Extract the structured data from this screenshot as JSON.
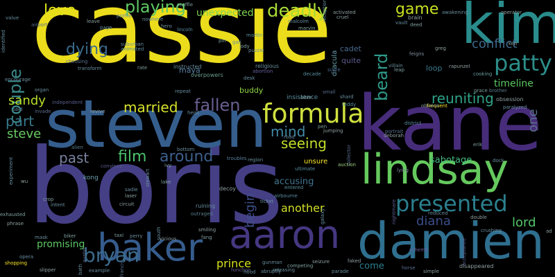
{
  "background": "#000000",
  "palette": [
    "#fde725",
    "#5ec962",
    "#21918c",
    "#3b528b",
    "#440154"
  ],
  "words": [
    {
      "text": "cassie",
      "color": "#ecdd1c",
      "size": 140,
      "weight": 5
    },
    {
      "text": "boris",
      "color": "#453f85",
      "size": 150,
      "weight": 5
    },
    {
      "text": "kane",
      "color": "#472c7a",
      "size": 110,
      "weight": 5
    },
    {
      "text": "steven",
      "color": "#355e8d",
      "size": 95,
      "weight": 5
    },
    {
      "text": "kim",
      "color": "#2a8c8c",
      "size": 80,
      "weight": 5
    },
    {
      "text": "damien",
      "color": "#2f6f8f",
      "size": 72,
      "weight": 5
    },
    {
      "text": "aaron",
      "color": "#453781",
      "size": 56,
      "weight": 4
    },
    {
      "text": "baker",
      "color": "#365c8d",
      "size": 54,
      "weight": 4
    },
    {
      "text": "lindsay",
      "color": "#65c95e",
      "size": 60,
      "weight": 4
    },
    {
      "text": "formula",
      "color": "#cfe13e",
      "size": 38,
      "weight": 3
    },
    {
      "text": "presented",
      "color": "#2b7f8e",
      "size": 32,
      "weight": 3
    },
    {
      "text": "patty",
      "color": "#2c8e8a",
      "size": 32,
      "weight": 3
    },
    {
      "text": "bryan",
      "color": "#3b6b8c",
      "size": 28,
      "weight": 3
    },
    {
      "text": "deadly",
      "color": "#a8db34",
      "size": 26,
      "weight": 3
    },
    {
      "text": "playing",
      "color": "#5fc862",
      "size": 24,
      "weight": 3
    },
    {
      "text": "fallen",
      "color": "#6a5f91",
      "size": 24,
      "weight": 3
    },
    {
      "text": "couple",
      "color": "#3b8b8d",
      "size": 24,
      "weight": 3
    },
    {
      "text": "beard",
      "color": "#2f9a8a",
      "size": 24,
      "weight": 3
    },
    {
      "text": "around",
      "color": "#3e5f8d",
      "size": 22,
      "weight": 3
    },
    {
      "text": "film",
      "color": "#4bc16b",
      "size": 22,
      "weight": 3
    },
    {
      "text": "love",
      "color": "#dfe318",
      "size": 22,
      "weight": 3
    },
    {
      "text": "game",
      "color": "#c8e020",
      "size": 22,
      "weight": 3
    },
    {
      "text": "dying",
      "color": "#3a6a8c",
      "size": 22,
      "weight": 3
    },
    {
      "text": "married",
      "color": "#d6e22a",
      "size": 20,
      "weight": 2
    },
    {
      "text": "reuniting",
      "color": "#2fa287",
      "size": 20,
      "weight": 2
    },
    {
      "text": "mind",
      "color": "#4289a6",
      "size": 20,
      "weight": 2
    },
    {
      "text": "seeing",
      "color": "#c3df29",
      "size": 20,
      "weight": 2
    },
    {
      "text": "past",
      "color": "#7a82a0",
      "size": 20,
      "weight": 2
    },
    {
      "text": "part",
      "color": "#3a7a8d",
      "size": 20,
      "weight": 2
    },
    {
      "text": "sandy",
      "color": "#b7de2a",
      "size": 18,
      "weight": 2
    },
    {
      "text": "steve",
      "color": "#6acb64",
      "size": 18,
      "weight": 2
    },
    {
      "text": "conflict",
      "color": "#3d6a8a",
      "size": 18,
      "weight": 2
    },
    {
      "text": "begin",
      "color": "#3f4f8c",
      "size": 18,
      "weight": 2
    },
    {
      "text": "diana",
      "color": "#3b4d88",
      "size": 18,
      "weight": 2
    },
    {
      "text": "lord",
      "color": "#54c568",
      "size": 18,
      "weight": 2
    },
    {
      "text": "another",
      "color": "#d3e028",
      "size": 16,
      "weight": 2
    },
    {
      "text": "prince",
      "color": "#d8e219",
      "size": 16,
      "weight": 2
    },
    {
      "text": "promising",
      "color": "#5dc863",
      "size": 14,
      "weight": 2
    },
    {
      "text": "unexpected",
      "color": "#7fd34e",
      "size": 14,
      "weight": 2
    },
    {
      "text": "timeline",
      "color": "#5bc862",
      "size": 14,
      "weight": 2
    },
    {
      "text": "sabotage",
      "color": "#42b97c",
      "size": 13,
      "weight": 2
    },
    {
      "text": "accusing",
      "color": "#42748f",
      "size": 13,
      "weight": 2
    },
    {
      "text": "one",
      "color": "#5a6f8c",
      "size": 18,
      "weight": 2
    },
    {
      "text": "come",
      "color": "#2b7f8e",
      "size": 13,
      "weight": 2
    },
    {
      "text": "loop",
      "color": "#3a7a8d",
      "size": 11,
      "weight": 1
    },
    {
      "text": "quite",
      "color": "#5b5b8f",
      "size": 11,
      "weight": 1
    },
    {
      "text": "cadet",
      "color": "#4a6a8f",
      "size": 11,
      "weight": 1
    },
    {
      "text": "buddy",
      "color": "#8fd744",
      "size": 11,
      "weight": 1
    },
    {
      "text": "maya",
      "color": "#5a7fa0",
      "size": 11,
      "weight": 1
    },
    {
      "text": "unsure",
      "color": "#fde725",
      "size": 10,
      "weight": 1
    },
    {
      "text": "kong",
      "color": "#6a9fb0",
      "size": 9,
      "weight": 1
    },
    {
      "text": "dracula",
      "color": "#6aa0b0",
      "size": 10,
      "weight": 1
    },
    {
      "text": "insistence",
      "color": "#5a8fa0",
      "size": 9,
      "weight": 1
    },
    {
      "text": "religious",
      "color": "#6a8fa0",
      "size": 8,
      "weight": 1
    },
    {
      "text": "instructed",
      "color": "#6a8fa0",
      "size": 8,
      "weight": 1
    },
    {
      "text": "overpowers",
      "color": "#6a9f90",
      "size": 8,
      "weight": 1
    },
    {
      "text": "lincoln",
      "color": "#5a8fa0",
      "size": 7,
      "weight": 1
    },
    {
      "text": "martin",
      "color": "#5a8fa0",
      "size": 7,
      "weight": 1
    },
    {
      "text": "gali",
      "color": "#6a8fa0",
      "size": 7,
      "weight": 1
    },
    {
      "text": "puzzle",
      "color": "#6a8fa0",
      "size": 7,
      "weight": 1
    },
    {
      "text": "abortion",
      "color": "#6a5fa0",
      "size": 7,
      "weight": 1
    },
    {
      "text": "decade",
      "color": "#5a8fa0",
      "size": 7,
      "weight": 1
    },
    {
      "text": "score",
      "color": "#4a6a8f",
      "size": 7,
      "weight": 1
    },
    {
      "text": "leap",
      "color": "#7fa0a0",
      "size": 7,
      "weight": 1
    },
    {
      "text": "villain",
      "color": "#6a8fa0",
      "size": 7,
      "weight": 1
    },
    {
      "text": "feigns",
      "color": "#7f8fa0",
      "size": 7,
      "weight": 1
    },
    {
      "text": "rapunzel",
      "color": "#8fa0a0",
      "size": 7,
      "weight": 1
    },
    {
      "text": "cooking",
      "color": "#6a9fa0",
      "size": 7,
      "weight": 1
    },
    {
      "text": "grace",
      "color": "#7fa0a0",
      "size": 7,
      "weight": 1
    },
    {
      "text": "brother",
      "color": "#5a7f8f",
      "size": 7,
      "weight": 1
    },
    {
      "text": "obsession",
      "color": "#8fa0a0",
      "size": 8,
      "weight": 1
    },
    {
      "text": "paralyzed",
      "color": "#6a8fa0",
      "size": 7,
      "weight": 1
    },
    {
      "text": "frequent",
      "color": "#fde725",
      "size": 7,
      "weight": 1
    },
    {
      "text": "obtains",
      "color": "#8fa0a0",
      "size": 7,
      "weight": 1
    },
    {
      "text": "district",
      "color": "#5a8fa0",
      "size": 7,
      "weight": 1
    },
    {
      "text": "portrait",
      "color": "#5a6f8f",
      "size": 7,
      "weight": 1
    },
    {
      "text": "erik",
      "color": "#7fa0a0",
      "size": 7,
      "weight": 1
    },
    {
      "text": "dock",
      "color": "#6a8fa0",
      "size": 7,
      "weight": 1
    },
    {
      "text": "auction",
      "color": "#a0d080",
      "size": 7,
      "weight": 1
    },
    {
      "text": "lying",
      "color": "#7f8fa0",
      "size": 7,
      "weight": 1
    },
    {
      "text": "ultimate",
      "color": "#5a8fa0",
      "size": 7,
      "weight": 1
    },
    {
      "text": "entered",
      "color": "#5a8fa0",
      "size": 7,
      "weight": 1
    },
    {
      "text": "airbourne",
      "color": "#5a8fa0",
      "size": 7,
      "weight": 1
    },
    {
      "text": "ticket",
      "color": "#6a8fa0",
      "size": 7,
      "weight": 1
    },
    {
      "text": "troubles",
      "color": "#5a7f9f",
      "size": 7,
      "weight": 1
    },
    {
      "text": "region",
      "color": "#6a8fa0",
      "size": 7,
      "weight": 1
    },
    {
      "text": "decoy",
      "color": "#8fa0a0",
      "size": 8,
      "weight": 1
    },
    {
      "text": "ruining",
      "color": "#6a8fa0",
      "size": 8,
      "weight": 1
    },
    {
      "text": "outraged",
      "color": "#5a7f8f",
      "size": 7,
      "weight": 1
    },
    {
      "text": "smiling",
      "color": "#8fa0a0",
      "size": 7,
      "weight": 1
    },
    {
      "text": "fang",
      "color": "#7fa0a0",
      "size": 7,
      "weight": 1
    },
    {
      "text": "gunman",
      "color": "#6a8fa0",
      "size": 7,
      "weight": 1
    },
    {
      "text": "releasing",
      "color": "#6a8fa0",
      "size": 7,
      "weight": 1
    },
    {
      "text": "competing",
      "color": "#7fa0a0",
      "size": 7,
      "weight": 1
    },
    {
      "text": "seizure",
      "color": "#8fa0a0",
      "size": 7,
      "weight": 1
    },
    {
      "text": "parade",
      "color": "#6a8fa0",
      "size": 7,
      "weight": 1
    },
    {
      "text": "faked",
      "color": "#8fa0a0",
      "size": 7,
      "weight": 1
    },
    {
      "text": "simple",
      "color": "#8fa0a0",
      "size": 7,
      "weight": 1
    },
    {
      "text": "disappeared",
      "color": "#8fa0a0",
      "size": 8,
      "weight": 1
    },
    {
      "text": "crushing",
      "color": "#6a8fa0",
      "size": 7,
      "weight": 1
    },
    {
      "text": "double",
      "color": "#8fa0a0",
      "size": 7,
      "weight": 1
    },
    {
      "text": "reduced",
      "color": "#6a8fa0",
      "size": 7,
      "weight": 1
    },
    {
      "text": "scheme",
      "color": "#6a5fa0",
      "size": 7,
      "weight": 1
    },
    {
      "text": "biker",
      "color": "#7fa0a0",
      "size": 7,
      "weight": 1
    },
    {
      "text": "mask",
      "color": "#6a8fa0",
      "size": 7,
      "weight": 1
    },
    {
      "text": "opera",
      "color": "#6a8fa0",
      "size": 7,
      "weight": 1
    },
    {
      "text": "slipper",
      "color": "#8fa0a0",
      "size": 7,
      "weight": 1
    },
    {
      "text": "shopping",
      "color": "#fde725",
      "size": 7,
      "weight": 1
    },
    {
      "text": "example",
      "color": "#6a8fa0",
      "size": 7,
      "weight": 1
    },
    {
      "text": "francis",
      "color": "#5a6f8f",
      "size": 7,
      "weight": 1
    },
    {
      "text": "vicious",
      "color": "#8fa0a0",
      "size": 7,
      "weight": 1
    },
    {
      "text": "perry",
      "color": "#6a8fa0",
      "size": 7,
      "weight": 1
    },
    {
      "text": "taxi",
      "color": "#7fa0a0",
      "size": 7,
      "weight": 1
    },
    {
      "text": "circuit",
      "color": "#8fa0a0",
      "size": 7,
      "weight": 1
    },
    {
      "text": "laser",
      "color": "#8fa0a0",
      "size": 7,
      "weight": 1
    },
    {
      "text": "sadie",
      "color": "#6a8fa0",
      "size": 7,
      "weight": 1
    },
    {
      "text": "lake",
      "color": "#7fa0a0",
      "size": 7,
      "weight": 1
    },
    {
      "text": "ivy",
      "color": "#7fa0a0",
      "size": 7,
      "weight": 1
    },
    {
      "text": "bottom",
      "color": "#6a8fa0",
      "size": 7,
      "weight": 1
    },
    {
      "text": "alien",
      "color": "#5a7f8f",
      "size": 7,
      "weight": 1
    },
    {
      "text": "phrase",
      "color": "#8fa0a0",
      "size": 7,
      "weight": 1
    },
    {
      "text": "exhausted",
      "color": "#7fa0a0",
      "size": 7,
      "weight": 1
    },
    {
      "text": "intent",
      "color": "#6a8fa0",
      "size": 7,
      "weight": 1
    },
    {
      "text": "crop",
      "color": "#7fa0a0",
      "size": 7,
      "weight": 1
    },
    {
      "text": "experiment",
      "color": "#6a8fa0",
      "size": 7,
      "weight": 1
    },
    {
      "text": "encourage",
      "color": "#6a8fa0",
      "size": 7,
      "weight": 1
    },
    {
      "text": "organ",
      "color": "#6a8fa0",
      "size": 7,
      "weight": 1
    },
    {
      "text": "revive",
      "color": "#8fa0a0",
      "size": 7,
      "weight": 1
    },
    {
      "text": "invade",
      "color": "#5a6f8f",
      "size": 7,
      "weight": 1
    },
    {
      "text": "said",
      "color": "#6a8fa0",
      "size": 7,
      "weight": 1
    },
    {
      "text": "independent",
      "color": "#5a5f8f",
      "size": 7,
      "weight": 1
    },
    {
      "text": "heist",
      "color": "#6a8fa0",
      "size": 7,
      "weight": 1
    },
    {
      "text": "repeat",
      "color": "#6a8fa0",
      "size": 7,
      "weight": 1
    },
    {
      "text": "transform",
      "color": "#6a8fa0",
      "size": 7,
      "weight": 1
    },
    {
      "text": "rate",
      "color": "#7fa0a0",
      "size": 7,
      "weight": 1
    },
    {
      "text": "choosing",
      "color": "#5a6f8f",
      "size": 7,
      "weight": 1
    },
    {
      "text": "suburban",
      "color": "#6a8fa0",
      "size": 7,
      "weight": 1
    },
    {
      "text": "animated",
      "color": "#5a8fa0",
      "size": 7,
      "weight": 1
    },
    {
      "text": "pin",
      "color": "#7fa0a0",
      "size": 7,
      "weight": 1
    },
    {
      "text": "jody",
      "color": "#7fa0a0",
      "size": 7,
      "weight": 1
    },
    {
      "text": "airport",
      "color": "#5a6f8f",
      "size": 7,
      "weight": 1
    },
    {
      "text": "value",
      "color": "#6a8fa0",
      "size": 7,
      "weight": 1
    },
    {
      "text": "identified",
      "color": "#6a8fa0",
      "size": 7,
      "weight": 1
    },
    {
      "text": "leave",
      "color": "#8fa0a0",
      "size": 7,
      "weight": 1
    },
    {
      "text": "page",
      "color": "#6a8fa0",
      "size": 7,
      "weight": 1
    },
    {
      "text": "profile",
      "color": "#6a8fa0",
      "size": 7,
      "weight": 1
    },
    {
      "text": "nowhere",
      "color": "#6a8fa0",
      "size": 7,
      "weight": 1
    },
    {
      "text": "hero",
      "color": "#6a8fa0",
      "size": 7,
      "weight": 1
    },
    {
      "text": "malcolm",
      "color": "#6a8fa0",
      "size": 7,
      "weight": 1
    },
    {
      "text": "marvin",
      "color": "#7fa0a0",
      "size": 7,
      "weight": 1
    },
    {
      "text": "reception",
      "color": "#6a8fa0",
      "size": 7,
      "weight": 1
    },
    {
      "text": "activated",
      "color": "#8fa0a0",
      "size": 7,
      "weight": 1
    },
    {
      "text": "cruel",
      "color": "#8fa0a0",
      "size": 7,
      "weight": 1
    },
    {
      "text": "brain",
      "color": "#8fa0a0",
      "size": 8,
      "weight": 1
    },
    {
      "text": "deed",
      "color": "#7fa0a0",
      "size": 7,
      "weight": 1
    },
    {
      "text": "vault",
      "color": "#6a8fa0",
      "size": 7,
      "weight": 1
    },
    {
      "text": "awakening",
      "color": "#6a8fa0",
      "size": 7,
      "weight": 1
    },
    {
      "text": "operator",
      "color": "#8fa0a0",
      "size": 7,
      "weight": 1
    },
    {
      "text": "greg",
      "color": "#8fa0a0",
      "size": 7,
      "weight": 1
    },
    {
      "text": "ken",
      "color": "#8fa0a0",
      "size": 7,
      "weight": 1
    },
    {
      "text": "shard",
      "color": "#6a8fa0",
      "size": 7,
      "weight": 1
    },
    {
      "text": "teddy",
      "color": "#5a8fa0",
      "size": 7,
      "weight": 1
    },
    {
      "text": "jumping",
      "color": "#8fa0a0",
      "size": 7,
      "weight": 1
    },
    {
      "text": "deborah",
      "color": "#8fa0a0",
      "size": 7,
      "weight": 1
    },
    {
      "text": "desk",
      "color": "#6a8fa0",
      "size": 7,
      "weight": 1
    },
    {
      "text": "alter",
      "color": "#7fa0a0",
      "size": 7,
      "weight": 1
    },
    {
      "text": "small",
      "color": "#5a6f8f",
      "size": 7,
      "weight": 1
    },
    {
      "text": "pen",
      "color": "#7fa0a0",
      "size": 7,
      "weight": 1
    },
    {
      "text": "road",
      "color": "#6a8fa0",
      "size": 7,
      "weight": 1
    },
    {
      "text": "function",
      "color": "#6a5f8f",
      "size": 7,
      "weight": 1
    },
    {
      "text": "abruptly",
      "color": "#6a8fa0",
      "size": 7,
      "weight": 1
    },
    {
      "text": "hood",
      "color": "#6a8fa0",
      "size": 7,
      "weight": 1
    },
    {
      "text": "scuffle",
      "color": "#7fa0a0",
      "size": 7,
      "weight": 1
    },
    {
      "text": "horse",
      "color": "#5a6f8f",
      "size": 7,
      "weight": 1
    },
    {
      "text": "nightmare",
      "color": "#5a5f8f",
      "size": 7,
      "weight": 1
    },
    {
      "text": "stewart",
      "color": "#6a8fa0",
      "size": 7,
      "weight": 1
    },
    {
      "text": "convince",
      "color": "#5a5f8f",
      "size": 7,
      "weight": 1
    },
    {
      "text": "collector",
      "color": "#5a6f8f",
      "size": 7,
      "weight": 1
    },
    {
      "text": "acceptance",
      "color": "#5a5f8f",
      "size": 7,
      "weight": 1
    },
    {
      "text": "bath",
      "color": "#6a8fa0",
      "size": 7,
      "weight": 1
    },
    {
      "text": "austin",
      "color": "#5a6f8f",
      "size": 7,
      "weight": 1
    },
    {
      "text": "galaxy",
      "color": "#6a8fa0",
      "size": 7,
      "weight": 1
    },
    {
      "text": "south",
      "color": "#6a8fa0",
      "size": 7,
      "weight": 1
    },
    {
      "text": "ad",
      "color": "#8fa0a0",
      "size": 7,
      "weight": 1
    },
    {
      "text": "wu",
      "color": "#8fa0a0",
      "size": 7,
      "weight": 1
    }
  ]
}
